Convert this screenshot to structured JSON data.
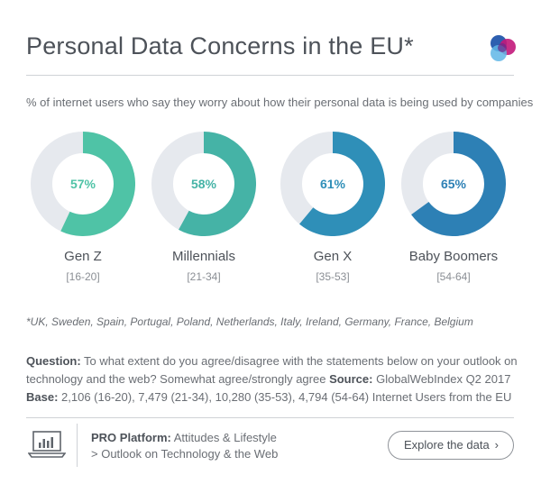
{
  "header": {
    "title": "Personal Data Concerns in the EU*",
    "logo_icon": "gwi-logo-icon",
    "subtitle": "% of internet users who say they worry about how their personal data is being used by companies"
  },
  "colors": {
    "track": "#e6e9ee",
    "gen_z": "#4fc3a6",
    "millennials": "#45b3a6",
    "gen_x": "#2f8fb8",
    "baby_boomers": "#2d80b5"
  },
  "chart_data": {
    "type": "pie",
    "variant": "donut",
    "categories": [
      "Gen Z",
      "Millennials",
      "Gen X",
      "Baby Boomers"
    ],
    "ranges": [
      "[16-20]",
      "[21-34]",
      "[35-53]",
      "[54-64]"
    ],
    "values": [
      57,
      58,
      61,
      65
    ],
    "labels": [
      "57%",
      "58%",
      "61%",
      "65%"
    ],
    "ylim": [
      0,
      100
    ]
  },
  "footnote": "*UK, Sweden, Spain, Portugal, Poland, Netherlands, Italy, Ireland, Germany, France, Belgium",
  "notes": {
    "question_label": "Question:",
    "question_text": " To what extent do you agree/disagree with the statements below on your outlook on technology and the web? Somewhat agree/strongly agree ",
    "source_label": "Source:",
    "source_text": " GlobalWebIndex Q2 2017",
    "base_label": "Base:",
    "base_text": " 2,106 (16-20), 7,479 (21-34), 10,280 (35-53), 4,794 (54-64) Internet Users from the EU"
  },
  "footer": {
    "laptop_icon": "laptop-chart-icon",
    "platform_label": "PRO Platform:",
    "platform_text": " Attitudes & Lifestyle",
    "platform_path": "> Outlook on Technology & the Web",
    "explore_label": "Explore the data",
    "explore_chevron": "›"
  }
}
